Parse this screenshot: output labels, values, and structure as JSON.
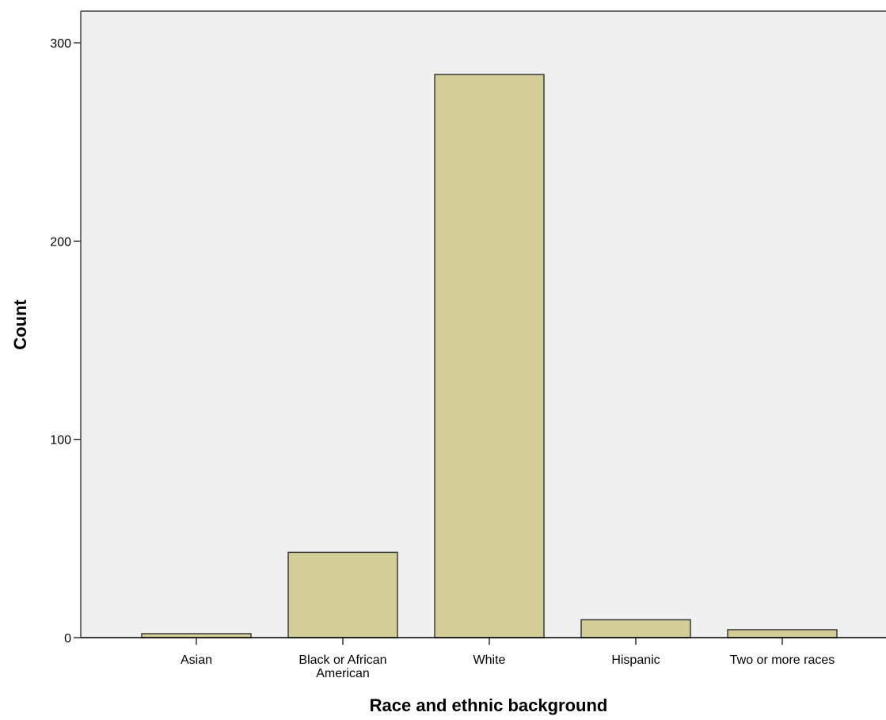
{
  "chart_data": {
    "type": "bar",
    "title": "",
    "xlabel": "Race and ethnic background",
    "ylabel": "Count",
    "categories": [
      [
        "Asian"
      ],
      [
        "Black or African",
        "American"
      ],
      [
        "White"
      ],
      [
        "Hispanic"
      ],
      [
        "Two or more races"
      ]
    ],
    "values": [
      2,
      43,
      284,
      9,
      4
    ],
    "ylim": [
      0,
      316
    ],
    "yticks": [
      "0",
      "100",
      "200",
      "300"
    ],
    "grid": false,
    "legend": "none",
    "colors": {
      "plot_background": "#f0f0f0",
      "bar_fill": "#d3ce97",
      "bar_stroke": "#3a3a3a",
      "axis": "#000000"
    }
  }
}
